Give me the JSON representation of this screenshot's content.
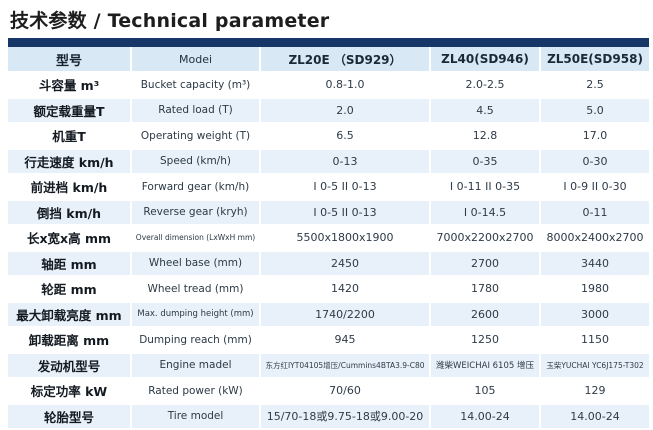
{
  "page": {
    "title": "技术参数 / Technical parameter"
  },
  "colors": {
    "top_bar": "#173769",
    "header_bg": "#d9e8f5",
    "row_bg": "#ffffff",
    "row_alt_bg": "#e8f1f9"
  },
  "table": {
    "header": {
      "cn": "型号",
      "en": "Modei",
      "models": [
        "ZL20E （SD929）",
        "ZL40(SD946)",
        "ZL50E(SD958)"
      ]
    },
    "rows": [
      {
        "cn": "斗容量 m³",
        "en": "Bucket capacity (m³)",
        "values": [
          "0.8-1.0",
          "2.0-2.5",
          "2.5"
        ]
      },
      {
        "cn": "额定载重量T",
        "en": "Rated load (T)",
        "values": [
          "2.0",
          "4.5",
          "5.0"
        ]
      },
      {
        "cn": "机重T",
        "en": "Operating weight (T)",
        "values": [
          "6.5",
          "12.8",
          "17.0"
        ]
      },
      {
        "cn": "行走速度 km/h",
        "en": "Speed (km/h)",
        "values": [
          "0-13",
          "0-35",
          "0-30"
        ]
      },
      {
        "cn": "前进档 km/h",
        "en": "Forward gear (km/h)",
        "values": [
          "I 0-5  II 0-13",
          "I 0-11  II 0-35",
          "I 0-9  II 0-30"
        ]
      },
      {
        "cn": "倒挡 km/h",
        "en": "Reverse gear (kryh)",
        "values": [
          "I 0-5  II 0-13",
          "I 0-14.5",
          "0-11"
        ]
      },
      {
        "cn": "长x宽x高 mm",
        "en": "Overall dimension (LxWxH mm)",
        "values": [
          "5500x1800x1900",
          "7000x2200x2700",
          "8000x2400x2700"
        ]
      },
      {
        "cn": "轴距 mm",
        "en": "Wheel base (mm)",
        "values": [
          "2450",
          "2700",
          "3440"
        ]
      },
      {
        "cn": "轮距 mm",
        "en": "Wheel tread (mm)",
        "values": [
          "1420",
          "1780",
          "1980"
        ]
      },
      {
        "cn": "最大卸载亮度 mm",
        "en": "Max. dumping height (mm)",
        "values": [
          "1740/2200",
          "2600",
          "3000"
        ]
      },
      {
        "cn": "卸载距离 mm",
        "en": "Dumping reach (mm)",
        "values": [
          "945",
          "1250",
          "1150"
        ]
      },
      {
        "cn": "发动机型号",
        "en": "Engine madel",
        "values": [
          "东方红IYT04105增压/Cummins4BTA3.9-C80",
          "潍柴WEICHAI 6105 增压",
          "玉柴YUCHAI YC6J175-T302"
        ]
      },
      {
        "cn": "标定功率 kW",
        "en": "Rated power (kW)",
        "values": [
          "70/60",
          "105",
          "129"
        ]
      },
      {
        "cn": "轮胎型号",
        "en": "Tire model",
        "values": [
          "15/70-18或9.75-18或9.00-20",
          "14.00-24",
          "14.00-24"
        ]
      }
    ]
  }
}
